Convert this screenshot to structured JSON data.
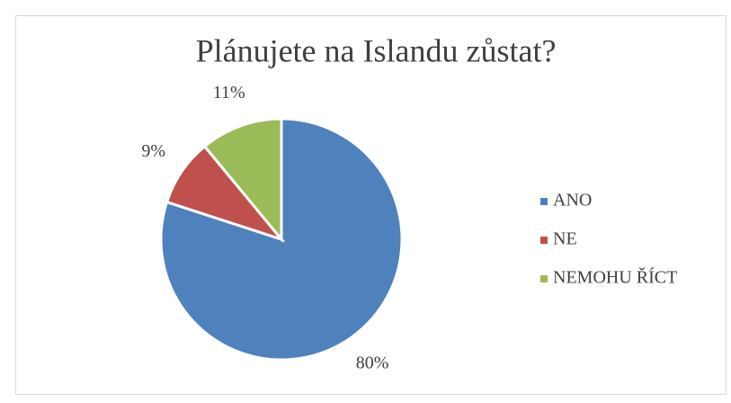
{
  "chart_data": {
    "type": "pie",
    "title": "Plánujete na Islandu zůstat?",
    "categories": [
      "ANO",
      "NE",
      "NEMOHU ŘÍCT"
    ],
    "values": [
      80,
      9,
      11
    ],
    "value_labels": [
      "80%",
      "9%",
      "11%"
    ],
    "colors": [
      "#4f81bd",
      "#c0504d",
      "#9bbb59"
    ],
    "legend": "right"
  }
}
